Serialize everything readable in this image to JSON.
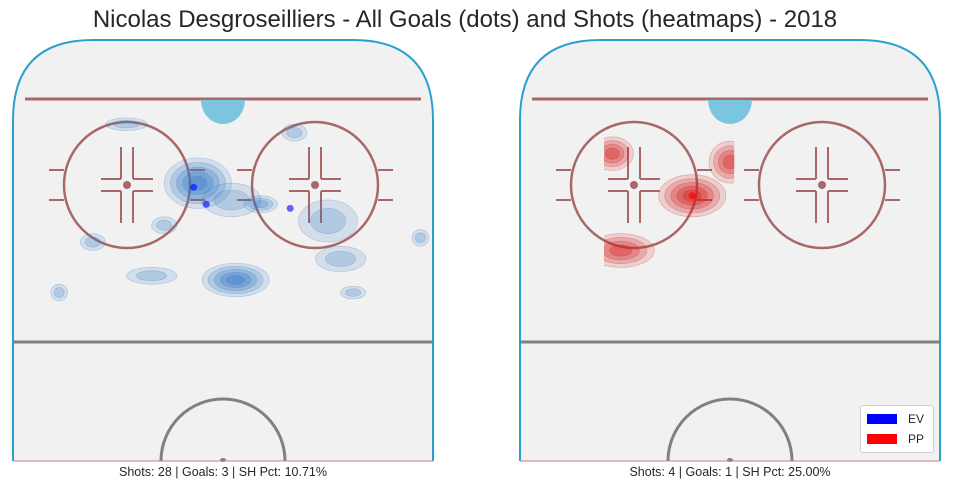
{
  "title": "Nicolas Desgroseilliers - All Goals (dots) and Shots (heatmaps) - 2018",
  "colors": {
    "ev": "#0000ff",
    "pp": "#ff0000",
    "ice": "#f1f1f1",
    "boards": "#2aa0cf",
    "goal_line": "#a86868",
    "circle": "#a86868",
    "crease": "#7cc5e1",
    "center_line": "#808080",
    "ev_heat": "#3a7bc8",
    "pp_heat": "#d42020"
  },
  "legend": [
    {
      "label": "EV",
      "color": "#0000ff"
    },
    {
      "label": "PP",
      "color": "#ff0000"
    }
  ],
  "chart_data": [
    {
      "type": "heatmap",
      "situation": "EV",
      "caption": "Shots: 28 | Goals: 3 | SH Pct: 10.71%",
      "shots": 28,
      "goals": 3,
      "sh_pct": "10.71%",
      "goal_dots": [
        {
          "x": 0.43,
          "y": 0.35
        },
        {
          "x": 0.46,
          "y": 0.39
        },
        {
          "x": 0.66,
          "y": 0.4
        }
      ],
      "heat_blobs": [
        {
          "x": 0.44,
          "y": 0.34,
          "rx": 0.08,
          "ry": 0.06,
          "intensity": 0.8
        },
        {
          "x": 0.52,
          "y": 0.38,
          "rx": 0.07,
          "ry": 0.04,
          "intensity": 0.35
        },
        {
          "x": 0.59,
          "y": 0.39,
          "rx": 0.04,
          "ry": 0.02,
          "intensity": 0.5
        },
        {
          "x": 0.75,
          "y": 0.43,
          "rx": 0.07,
          "ry": 0.05,
          "intensity": 0.4
        },
        {
          "x": 0.78,
          "y": 0.52,
          "rx": 0.06,
          "ry": 0.03,
          "intensity": 0.3
        },
        {
          "x": 0.53,
          "y": 0.57,
          "rx": 0.08,
          "ry": 0.04,
          "intensity": 0.9
        },
        {
          "x": 0.33,
          "y": 0.56,
          "rx": 0.06,
          "ry": 0.02,
          "intensity": 0.3
        },
        {
          "x": 0.19,
          "y": 0.48,
          "rx": 0.03,
          "ry": 0.02,
          "intensity": 0.2
        },
        {
          "x": 0.36,
          "y": 0.44,
          "rx": 0.03,
          "ry": 0.02,
          "intensity": 0.2
        },
        {
          "x": 0.27,
          "y": 0.2,
          "rx": 0.05,
          "ry": 0.015,
          "intensity": 0.15
        },
        {
          "x": 0.67,
          "y": 0.22,
          "rx": 0.03,
          "ry": 0.02,
          "intensity": 0.2
        },
        {
          "x": 0.81,
          "y": 0.6,
          "rx": 0.03,
          "ry": 0.015,
          "intensity": 0.15
        },
        {
          "x": 0.97,
          "y": 0.47,
          "rx": 0.02,
          "ry": 0.02,
          "intensity": 0.15
        },
        {
          "x": 0.11,
          "y": 0.6,
          "rx": 0.02,
          "ry": 0.02,
          "intensity": 0.15
        }
      ]
    },
    {
      "type": "heatmap",
      "situation": "PP",
      "caption": "Shots: 4 | Goals: 1 | SH Pct: 25.00%",
      "shots": 4,
      "goals": 1,
      "sh_pct": "25.00%",
      "goal_dots": [
        {
          "x": 0.41,
          "y": 0.37
        }
      ],
      "heat_blobs": [
        {
          "x": 0.41,
          "y": 0.37,
          "rx": 0.08,
          "ry": 0.05,
          "intensity": 0.9
        },
        {
          "x": 0.5,
          "y": 0.29,
          "rx": 0.05,
          "ry": 0.05,
          "intensity": 0.7
        },
        {
          "x": 0.22,
          "y": 0.27,
          "rx": 0.05,
          "ry": 0.04,
          "intensity": 0.6
        },
        {
          "x": 0.24,
          "y": 0.5,
          "rx": 0.08,
          "ry": 0.04,
          "intensity": 0.7
        }
      ],
      "clip_x": [
        0.2,
        0.51
      ]
    }
  ]
}
